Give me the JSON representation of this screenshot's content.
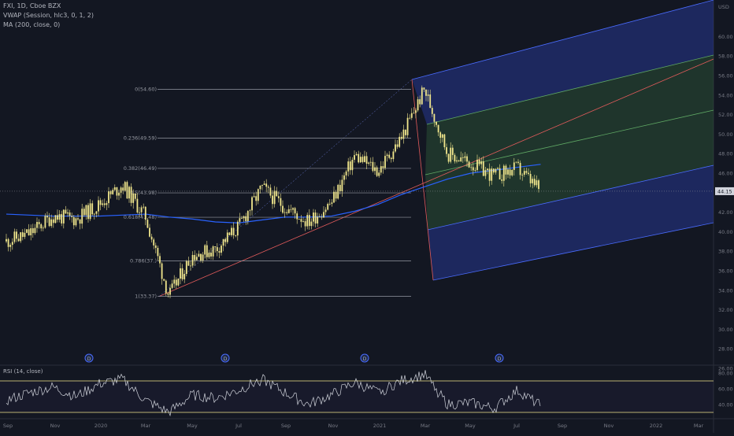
{
  "header": {
    "symbol_line": "FXI, 1D, Cboe BZX",
    "vwap_line": "VWAP (Session, hlc3, 0, 1, 2)",
    "ma_line": "MA (200, close, 0)"
  },
  "rsi_panel": {
    "label": "RSI (14, close)",
    "ticks": [
      "80.00",
      "60.00",
      "40.00"
    ]
  },
  "price_axis": {
    "currency": "USD",
    "ticks": [
      "60.00",
      "58.00",
      "56.00",
      "54.00",
      "52.00",
      "50.00",
      "48.00",
      "46.00",
      "42.00",
      "40.00",
      "38.00",
      "36.00",
      "34.00",
      "32.00",
      "30.00",
      "28.00",
      "26.00"
    ],
    "last_price_label": "44.15"
  },
  "time_axis": {
    "labels": [
      "Sep",
      "Nov",
      "2020",
      "Mar",
      "May",
      "Jul",
      "Sep",
      "Nov",
      "2021",
      "Mar",
      "May",
      "Jul",
      "Sep",
      "Nov",
      "2022",
      "Mar"
    ]
  },
  "fib_labels": [
    "0(54.60)",
    "0.236(49.59)",
    "0.382(46.49)",
    "0.5(43.98)",
    "0.618(41.48)",
    "0.786(37.)",
    "1(33.37)"
  ],
  "event_markers": [
    "D",
    "D",
    "D",
    "D"
  ],
  "colors": {
    "background": "#131722",
    "candle": "#f0e68c",
    "ma_line": "#2962ff",
    "grid_text": "#787b86",
    "pitchfork_blue": "#2a3fa8",
    "pitchfork_green": "#2f5a3a",
    "median_line": "#e25b5b",
    "last_price_badge": "#1e222d"
  },
  "chart_data": [
    {
      "type": "candlestick",
      "title": "FXI, 1D, Cboe BZX",
      "ylabel": "USD",
      "ylim": [
        25,
        62
      ],
      "x": [
        "2019-08",
        "2019-09",
        "2019-10",
        "2019-11",
        "2019-12",
        "2020-01",
        "2020-02",
        "2020-03",
        "2020-04",
        "2020-05",
        "2020-06",
        "2020-07",
        "2020-08",
        "2020-09",
        "2020-10",
        "2020-11",
        "2020-12",
        "2021-01",
        "2021-02",
        "2021-03",
        "2021-04",
        "2021-05",
        "2021-06",
        "2021-07"
      ],
      "series": [
        {
          "name": "FXI",
          "values": [
            39.0,
            39.8,
            41.6,
            41.3,
            42.8,
            44.8,
            41.5,
            33.4,
            37.6,
            38.2,
            40.5,
            44.5,
            42.5,
            41.0,
            43.0,
            47.8,
            46.2,
            49.6,
            54.6,
            48.0,
            47.0,
            45.7,
            46.5,
            44.15
          ]
        },
        {
          "name": "MA (200, close, 0)",
          "values": [
            41.8,
            41.7,
            41.6,
            41.6,
            41.6,
            41.7,
            41.8,
            41.5,
            41.3,
            41.0,
            40.9,
            41.2,
            41.5,
            41.5,
            41.6,
            42.1,
            42.8,
            43.8,
            44.6,
            45.4,
            46.0,
            46.3,
            46.6,
            46.9
          ]
        }
      ],
      "fibonacci": [
        {
          "level": 0,
          "price": 54.6
        },
        {
          "level": 0.236,
          "price": 49.59
        },
        {
          "level": 0.382,
          "price": 46.49
        },
        {
          "level": 0.5,
          "price": 43.98
        },
        {
          "level": 0.618,
          "price": 41.48
        },
        {
          "level": 0.786,
          "price": 37.0
        },
        {
          "level": 1,
          "price": 33.37
        }
      ],
      "last_price": 44.15
    },
    {
      "type": "line",
      "title": "RSI (14, close)",
      "ylim": [
        25,
        85
      ],
      "x": [
        "2019-08",
        "2019-09",
        "2019-10",
        "2019-11",
        "2019-12",
        "2020-01",
        "2020-02",
        "2020-03",
        "2020-04",
        "2020-05",
        "2020-06",
        "2020-07",
        "2020-08",
        "2020-09",
        "2020-10",
        "2020-11",
        "2020-12",
        "2021-01",
        "2021-02",
        "2021-03",
        "2021-04",
        "2021-05",
        "2021-06",
        "2021-07"
      ],
      "series": [
        {
          "name": "RSI (14, close)",
          "values": [
            45,
            55,
            62,
            50,
            66,
            72,
            45,
            30,
            52,
            48,
            58,
            72,
            55,
            40,
            52,
            68,
            55,
            70,
            78,
            40,
            42,
            35,
            58,
            38
          ]
        }
      ],
      "bands": [
        70,
        30
      ]
    }
  ]
}
